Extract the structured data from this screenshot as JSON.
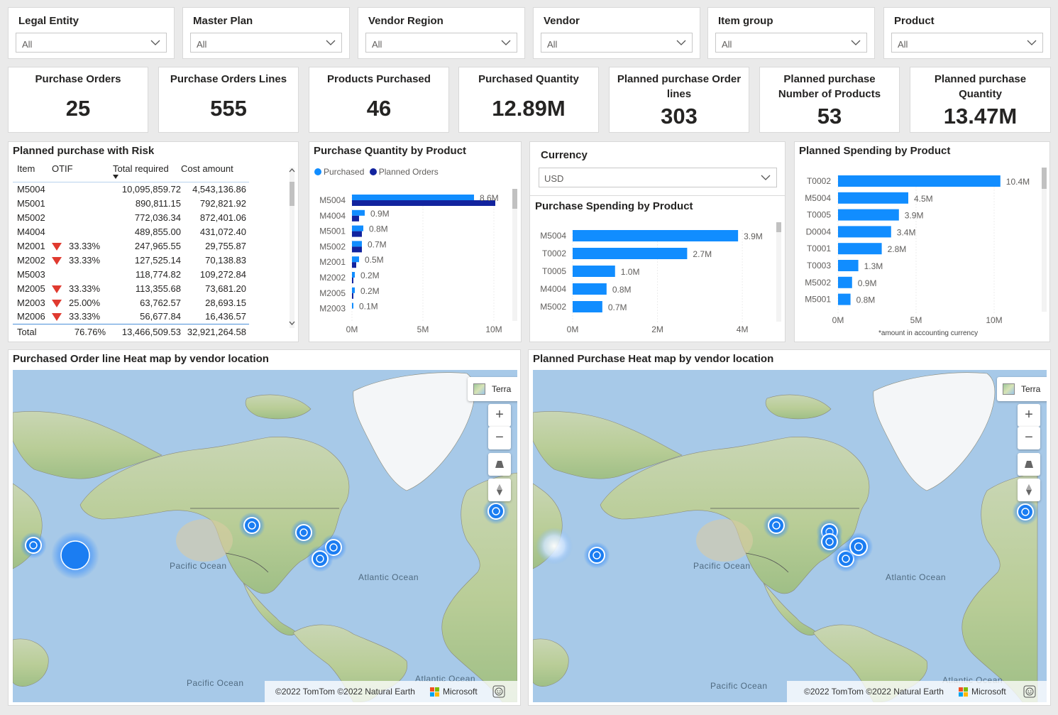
{
  "slicers": [
    {
      "title": "Legal Entity",
      "value": "All"
    },
    {
      "title": "Master Plan",
      "value": "All"
    },
    {
      "title": "Vendor Region",
      "value": "All"
    },
    {
      "title": "Vendor",
      "value": "All"
    },
    {
      "title": "Item group",
      "value": "All"
    },
    {
      "title": "Product",
      "value": "All"
    }
  ],
  "kpis": [
    {
      "label": "Purchase Orders",
      "value": "25"
    },
    {
      "label": "Purchase Orders Lines",
      "value": "555"
    },
    {
      "label": "Products Purchased",
      "value": "46"
    },
    {
      "label": "Purchased Quantity",
      "value": "12.89M"
    },
    {
      "label": "Planned purchase Order lines",
      "value": "303"
    },
    {
      "label": "Planned purchase Number of Products",
      "value": "53"
    },
    {
      "label": "Planned purchase Quantity",
      "value": "13.47M"
    }
  ],
  "risk_table": {
    "title": "Planned purchase with Risk",
    "columns": [
      "Item",
      "OTIF",
      "Total required",
      "Cost amount"
    ],
    "rows": [
      {
        "item": "M5004",
        "risk": false,
        "otif": "",
        "total": "10,095,859.72",
        "cost": "4,543,136.86"
      },
      {
        "item": "M5001",
        "risk": false,
        "otif": "",
        "total": "890,811.15",
        "cost": "792,821.92"
      },
      {
        "item": "M5002",
        "risk": false,
        "otif": "",
        "total": "772,036.34",
        "cost": "872,401.06"
      },
      {
        "item": "M4004",
        "risk": false,
        "otif": "",
        "total": "489,855.00",
        "cost": "431,072.40"
      },
      {
        "item": "M2001",
        "risk": true,
        "otif": "33.33%",
        "total": "247,965.55",
        "cost": "29,755.87"
      },
      {
        "item": "M2002",
        "risk": true,
        "otif": "33.33%",
        "total": "127,525.14",
        "cost": "70,138.83"
      },
      {
        "item": "M5003",
        "risk": false,
        "otif": "",
        "total": "118,774.82",
        "cost": "109,272.84"
      },
      {
        "item": "M2005",
        "risk": true,
        "otif": "33.33%",
        "total": "113,355.68",
        "cost": "73,681.20"
      },
      {
        "item": "M2003",
        "risk": true,
        "otif": "25.00%",
        "total": "63,762.57",
        "cost": "28,693.15"
      },
      {
        "item": "M2006",
        "risk": true,
        "otif": "33.33%",
        "total": "56,677.84",
        "cost": "16,436.57"
      }
    ],
    "total": {
      "item": "Total",
      "otif": "76.76%",
      "total": "13,466,509.53",
      "cost": "32,921,264.58"
    }
  },
  "currency": {
    "title": "Currency",
    "value": "USD"
  },
  "colors": {
    "purchased": "#118dff",
    "planned": "#12239e",
    "risk": "#e03a2f",
    "bar": "#118dff"
  },
  "chart_data": [
    {
      "type": "bar",
      "title": "Purchase Quantity by Product",
      "orientation": "horizontal",
      "categories": [
        "M5004",
        "M4004",
        "M5001",
        "M5002",
        "M2001",
        "M2002",
        "M2005",
        "M2003"
      ],
      "series": [
        {
          "name": "Purchased",
          "values": [
            8.6,
            0.9,
            0.8,
            0.7,
            0.5,
            0.2,
            0.2,
            0.1
          ]
        },
        {
          "name": "Planned Orders",
          "values": [
            10.1,
            0.5,
            0.7,
            0.7,
            0.3,
            0.1,
            0.1,
            0.0
          ]
        }
      ],
      "data_labels": [
        "8.6M",
        "0.9M",
        "0.8M",
        "0.7M",
        "0.5M",
        "0.2M",
        "0.2M",
        "0.1M"
      ],
      "legend": "top-left",
      "xlim": [
        0,
        11
      ],
      "xticks": [
        "0M",
        "5M",
        "10M"
      ],
      "xtick_values": [
        0,
        5,
        10
      ]
    },
    {
      "type": "bar",
      "title": "Purchase Spending by Product",
      "orientation": "horizontal",
      "categories": [
        "M5004",
        "T0002",
        "T0005",
        "M4004",
        "M5002"
      ],
      "values": [
        3.9,
        2.7,
        1.0,
        0.8,
        0.7
      ],
      "data_labels": [
        "3.9M",
        "2.7M",
        "1.0M",
        "0.8M",
        "0.7M"
      ],
      "xlim": [
        0,
        4.5
      ],
      "xticks": [
        "0M",
        "2M",
        "4M"
      ],
      "xtick_values": [
        0,
        2,
        4
      ]
    },
    {
      "type": "bar",
      "title": "Planned Spending by Product",
      "orientation": "horizontal",
      "categories": [
        "T0002",
        "M5004",
        "T0005",
        "D0004",
        "T0001",
        "T0003",
        "M5002",
        "M5001"
      ],
      "values": [
        10.4,
        4.5,
        3.9,
        3.4,
        2.8,
        1.3,
        0.9,
        0.8
      ],
      "data_labels": [
        "10.4M",
        "4.5M",
        "3.9M",
        "3.4M",
        "2.8M",
        "1.3M",
        "0.9M",
        "0.8M"
      ],
      "xlim": [
        0,
        11.5
      ],
      "xticks": [
        "0M",
        "5M",
        "10M"
      ],
      "xtick_values": [
        0,
        5,
        10
      ],
      "footnote": "*amount in accounting currency"
    }
  ],
  "maps": [
    {
      "title": "Purchased Order line Heat map by vendor location",
      "style_label": "Terra",
      "oceans": [
        "Pacific Ocean",
        "Atlantic Ocean",
        "Pacific Ocean",
        "Atlantic Ocean"
      ],
      "attribution": "©2022 TomTom ©2022 Natural Earth",
      "brand": "Microsoft"
    },
    {
      "title": "Planned Purchase Heat map by vendor location",
      "style_label": "Terra",
      "oceans": [
        "Pacific Ocean",
        "Atlantic Ocean",
        "Pacific Ocean",
        "Atlantic Ocean"
      ],
      "attribution": "©2022 TomTom ©2022 Natural Earth",
      "brand": "Microsoft"
    }
  ],
  "map_controls": {
    "zoom_in": "+",
    "zoom_out": "−"
  }
}
